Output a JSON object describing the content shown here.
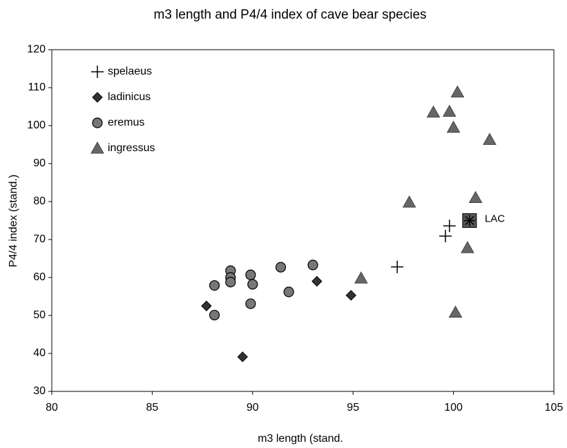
{
  "chart_data": {
    "type": "scatter",
    "title": "m3 length and P4/4 index of cave bear species",
    "x_label": "m3 length (stand.",
    "y_label": "P4/4 index (stand.)",
    "xlim": [
      80,
      105
    ],
    "xticks": [
      80,
      85,
      90,
      95,
      100,
      105
    ],
    "ylim": [
      30,
      120
    ],
    "yticks": [
      30,
      40,
      50,
      60,
      70,
      80,
      90,
      100,
      110,
      120
    ],
    "legend": "upper left",
    "series": [
      {
        "name": "spelaeus",
        "marker": "plus",
        "color": "#000000",
        "x": [
          97.2,
          99.6,
          99.8
        ],
        "y": [
          62.8,
          70.9,
          73.6
        ]
      },
      {
        "name": "ladinicus",
        "marker": "diamond",
        "color": "#333333",
        "x": [
          87.7,
          89.5,
          93.2,
          94.9
        ],
        "y": [
          52.5,
          39.1,
          59.0,
          55.3
        ]
      },
      {
        "name": "eremus",
        "marker": "circle",
        "color": "#777777",
        "x": [
          88.1,
          88.1,
          88.9,
          88.9,
          88.9,
          89.9,
          90.0,
          89.9,
          91.4,
          91.8,
          93.0
        ],
        "y": [
          57.9,
          50.1,
          61.8,
          60.0,
          58.8,
          60.7,
          58.2,
          53.1,
          62.7,
          56.2,
          63.3
        ]
      },
      {
        "name": "ingressus",
        "marker": "triangle",
        "color": "#666666",
        "x": [
          95.4,
          97.8,
          99.0,
          99.8,
          100.0,
          100.2,
          101.8,
          101.1,
          100.7,
          100.1
        ],
        "y": [
          59.8,
          79.8,
          103.5,
          103.7,
          99.5,
          108.8,
          96.3,
          81.0,
          67.8,
          50.8
        ]
      }
    ],
    "annotations": [
      {
        "text": "LAC",
        "x": 100.8,
        "y": 75
      }
    ]
  }
}
